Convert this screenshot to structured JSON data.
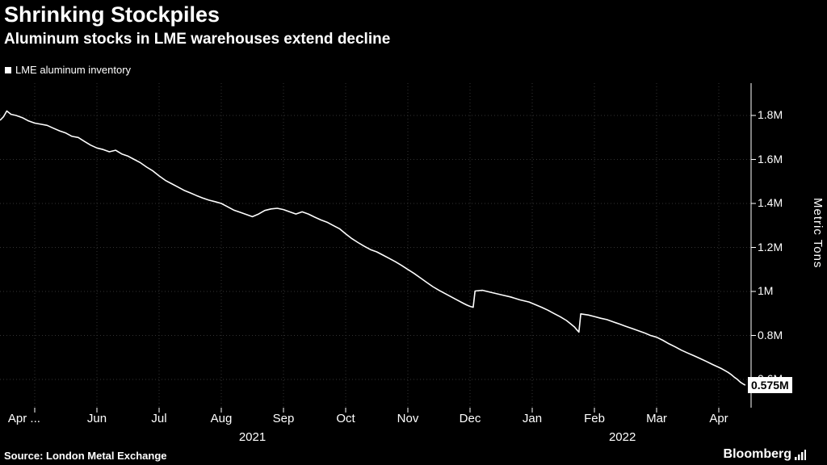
{
  "header": {
    "title": "Shrinking Stockpiles",
    "subtitle": "Aluminum stocks in LME warehouses extend decline"
  },
  "legend": {
    "label": "LME aluminum inventory",
    "swatch_color": "#ffffff"
  },
  "footer": {
    "source": "Source: London Metal Exchange",
    "brand": "Bloomberg"
  },
  "colors": {
    "background": "#000000",
    "text": "#ffffff",
    "line": "#ffffff",
    "grid": "#333333",
    "last_value_box_bg": "#ffffff",
    "last_value_box_text": "#000000"
  },
  "chart_data": {
    "type": "line",
    "title": "Shrinking Stockpiles",
    "subtitle": "Aluminum stocks in LME warehouses extend decline",
    "series_name": "LME aluminum inventory",
    "ylabel": "Metric Tons",
    "unit": "million metric tons",
    "grid": "dotted",
    "legend_position": "top-left",
    "x_range": [
      "Apr 2021",
      "Apr 2022"
    ],
    "ylim": [
      0.47,
      1.95
    ],
    "last_value": 0.575,
    "last_value_label": "0.575M",
    "y_ticks": [
      {
        "value": 1.8,
        "label": "1.8M"
      },
      {
        "value": 1.6,
        "label": "1.6M"
      },
      {
        "value": 1.4,
        "label": "1.4M"
      },
      {
        "value": 1.2,
        "label": "1.2M"
      },
      {
        "value": 1.0,
        "label": "1M"
      },
      {
        "value": 0.8,
        "label": "0.8M"
      },
      {
        "value": 0.6,
        "label": "0.6M"
      }
    ],
    "x_ticks": [
      {
        "m": 0.83,
        "label": "Apr ..."
      },
      {
        "m": 2,
        "label": "Jun"
      },
      {
        "m": 3,
        "label": "Jul"
      },
      {
        "m": 4,
        "label": "Aug"
      },
      {
        "m": 5,
        "label": "Sep"
      },
      {
        "m": 6,
        "label": "Oct"
      },
      {
        "m": 7,
        "label": "Nov"
      },
      {
        "m": 8,
        "label": "Dec"
      },
      {
        "m": 9,
        "label": "Jan"
      },
      {
        "m": 10,
        "label": "Feb"
      },
      {
        "m": 11,
        "label": "Mar"
      },
      {
        "m": 12,
        "label": "Apr"
      }
    ],
    "year_labels": [
      {
        "m": 4.5,
        "label": "2021"
      },
      {
        "m": 10.45,
        "label": "2022"
      }
    ],
    "x_unit": "months since 2021-04-01",
    "points": [
      [
        0.45,
        1.78
      ],
      [
        0.5,
        1.795
      ],
      [
        0.55,
        1.82
      ],
      [
        0.62,
        1.805
      ],
      [
        0.7,
        1.8
      ],
      [
        0.8,
        1.79
      ],
      [
        0.9,
        1.775
      ],
      [
        1.0,
        1.765
      ],
      [
        1.1,
        1.76
      ],
      [
        1.2,
        1.755
      ],
      [
        1.3,
        1.742
      ],
      [
        1.4,
        1.73
      ],
      [
        1.5,
        1.72
      ],
      [
        1.6,
        1.705
      ],
      [
        1.7,
        1.7
      ],
      [
        1.8,
        1.682
      ],
      [
        1.9,
        1.665
      ],
      [
        2.0,
        1.652
      ],
      [
        2.1,
        1.645
      ],
      [
        2.2,
        1.635
      ],
      [
        2.3,
        1.642
      ],
      [
        2.4,
        1.625
      ],
      [
        2.5,
        1.615
      ],
      [
        2.6,
        1.6
      ],
      [
        2.7,
        1.585
      ],
      [
        2.8,
        1.565
      ],
      [
        2.9,
        1.548
      ],
      [
        3.0,
        1.525
      ],
      [
        3.1,
        1.505
      ],
      [
        3.2,
        1.49
      ],
      [
        3.3,
        1.475
      ],
      [
        3.4,
        1.46
      ],
      [
        3.5,
        1.448
      ],
      [
        3.6,
        1.436
      ],
      [
        3.7,
        1.425
      ],
      [
        3.8,
        1.415
      ],
      [
        3.9,
        1.408
      ],
      [
        4.0,
        1.4
      ],
      [
        4.1,
        1.385
      ],
      [
        4.2,
        1.37
      ],
      [
        4.3,
        1.36
      ],
      [
        4.4,
        1.35
      ],
      [
        4.5,
        1.34
      ],
      [
        4.6,
        1.352
      ],
      [
        4.7,
        1.368
      ],
      [
        4.8,
        1.375
      ],
      [
        4.9,
        1.378
      ],
      [
        5.0,
        1.372
      ],
      [
        5.1,
        1.362
      ],
      [
        5.2,
        1.352
      ],
      [
        5.3,
        1.362
      ],
      [
        5.4,
        1.352
      ],
      [
        5.5,
        1.338
      ],
      [
        5.6,
        1.325
      ],
      [
        5.7,
        1.315
      ],
      [
        5.8,
        1.3
      ],
      [
        5.9,
        1.285
      ],
      [
        6.0,
        1.262
      ],
      [
        6.1,
        1.24
      ],
      [
        6.2,
        1.222
      ],
      [
        6.3,
        1.205
      ],
      [
        6.4,
        1.19
      ],
      [
        6.5,
        1.18
      ],
      [
        6.6,
        1.165
      ],
      [
        6.7,
        1.15
      ],
      [
        6.8,
        1.135
      ],
      [
        6.9,
        1.118
      ],
      [
        7.0,
        1.1
      ],
      [
        7.1,
        1.082
      ],
      [
        7.2,
        1.062
      ],
      [
        7.3,
        1.042
      ],
      [
        7.4,
        1.022
      ],
      [
        7.5,
        1.005
      ],
      [
        7.6,
        0.99
      ],
      [
        7.7,
        0.975
      ],
      [
        7.8,
        0.96
      ],
      [
        7.9,
        0.945
      ],
      [
        7.95,
        0.938
      ],
      [
        8.0,
        0.932
      ],
      [
        8.05,
        0.928
      ],
      [
        8.08,
        1.002
      ],
      [
        8.2,
        1.005
      ],
      [
        8.35,
        0.995
      ],
      [
        8.5,
        0.985
      ],
      [
        8.65,
        0.975
      ],
      [
        8.8,
        0.962
      ],
      [
        8.95,
        0.952
      ],
      [
        9.05,
        0.94
      ],
      [
        9.15,
        0.928
      ],
      [
        9.25,
        0.915
      ],
      [
        9.35,
        0.9
      ],
      [
        9.45,
        0.885
      ],
      [
        9.55,
        0.868
      ],
      [
        9.62,
        0.852
      ],
      [
        9.68,
        0.838
      ],
      [
        9.72,
        0.825
      ],
      [
        9.75,
        0.815
      ],
      [
        9.78,
        0.898
      ],
      [
        9.9,
        0.893
      ],
      [
        10.0,
        0.886
      ],
      [
        10.1,
        0.878
      ],
      [
        10.2,
        0.872
      ],
      [
        10.3,
        0.862
      ],
      [
        10.4,
        0.852
      ],
      [
        10.5,
        0.842
      ],
      [
        10.6,
        0.832
      ],
      [
        10.7,
        0.822
      ],
      [
        10.8,
        0.812
      ],
      [
        10.9,
        0.8
      ],
      [
        11.0,
        0.792
      ],
      [
        11.1,
        0.778
      ],
      [
        11.2,
        0.762
      ],
      [
        11.3,
        0.748
      ],
      [
        11.4,
        0.733
      ],
      [
        11.5,
        0.72
      ],
      [
        11.6,
        0.708
      ],
      [
        11.7,
        0.695
      ],
      [
        11.8,
        0.682
      ],
      [
        11.9,
        0.668
      ],
      [
        12.0,
        0.655
      ],
      [
        12.05,
        0.648
      ],
      [
        12.1,
        0.64
      ],
      [
        12.15,
        0.632
      ],
      [
        12.2,
        0.622
      ],
      [
        12.25,
        0.61
      ],
      [
        12.3,
        0.6
      ],
      [
        12.33,
        0.592
      ],
      [
        12.36,
        0.585
      ],
      [
        12.4,
        0.578
      ],
      [
        12.42,
        0.575
      ]
    ]
  }
}
